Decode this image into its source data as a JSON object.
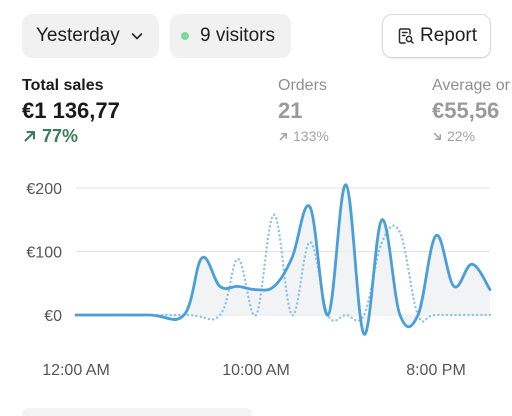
{
  "toolbar": {
    "date_label": "Yesterday",
    "visitors_label": "9 visitors",
    "report_label": "Report",
    "icons": {
      "date": "chevron-down-icon",
      "visitors": "status-dot-icon",
      "report": "report-search-icon"
    },
    "live_dot_color": "#7ed89a"
  },
  "metrics": {
    "sales": {
      "label": "Total sales",
      "value": "€1 136,77",
      "delta": "77%",
      "trend": "up",
      "delta_color": "#3e7b5a"
    },
    "orders": {
      "label": "Orders",
      "value": "21",
      "delta": "133%",
      "trend": "up"
    },
    "average": {
      "label": "Average or",
      "value": "€55,56",
      "delta": "22%",
      "trend": "down"
    }
  },
  "chart_data": {
    "type": "line",
    "ylim": [
      0,
      200
    ],
    "y_ticks": [
      "€200",
      "€100",
      "€0"
    ],
    "y_tick_values": [
      200,
      100,
      0
    ],
    "x_ticks": [
      "12:00 AM",
      "10:00 AM",
      "8:00 PM"
    ],
    "x_tick_hours": [
      0,
      10,
      20
    ],
    "xlim": [
      0,
      23
    ],
    "grid": true,
    "series": [
      {
        "style": "solid",
        "color": "#4a9fd8",
        "x": [
          0,
          4,
          6,
          7,
          8,
          9,
          10,
          11,
          12,
          13,
          14,
          15,
          16,
          17,
          18,
          19,
          20,
          21,
          22,
          23
        ],
        "y": [
          0,
          0,
          0,
          90,
          45,
          45,
          40,
          45,
          90,
          170,
          0,
          205,
          -30,
          150,
          0,
          0,
          125,
          45,
          80,
          40
        ]
      },
      {
        "style": "dotted",
        "color": "#8cc3e8",
        "x": [
          0,
          6,
          8,
          9,
          10,
          11,
          12,
          13,
          14,
          15,
          16,
          17,
          18,
          19,
          20,
          23
        ],
        "y": [
          0,
          0,
          0,
          88,
          0,
          158,
          0,
          115,
          0,
          0,
          0,
          115,
          130,
          0,
          0,
          0
        ]
      }
    ],
    "area_fill": "#eef0f2"
  }
}
